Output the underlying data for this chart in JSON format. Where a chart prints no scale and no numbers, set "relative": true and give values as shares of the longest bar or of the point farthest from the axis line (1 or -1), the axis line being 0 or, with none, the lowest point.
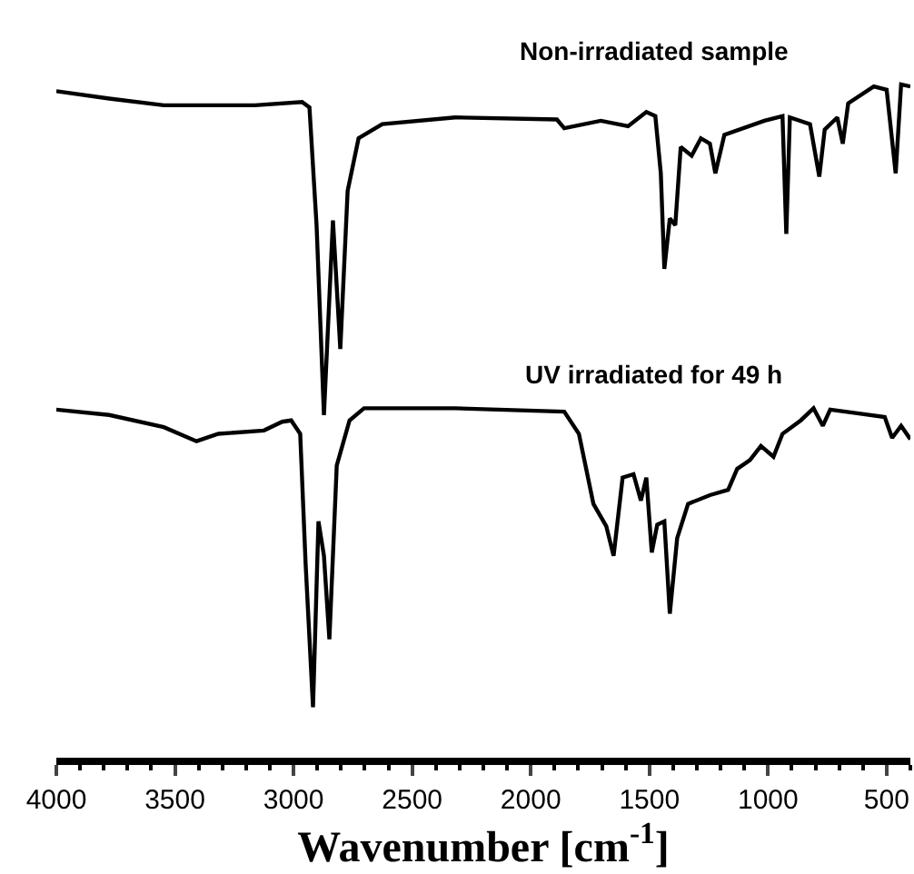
{
  "chart_data": {
    "type": "line",
    "relative": true,
    "xlabel": "Wavenumber [cm$^{-1}$]",
    "xlim": [
      4000,
      400
    ],
    "xticks": [
      4000,
      3500,
      3000,
      2500,
      2000,
      1500,
      1000,
      500
    ],
    "legend": false,
    "marker": "none",
    "line_style": "solid",
    "series": [
      {
        "name": "Non-irradiated sample",
        "color": "#000000",
        "x": [
          4000,
          3777,
          3547,
          3163,
          2964,
          2933,
          2903,
          2872,
          2834,
          2803,
          2772,
          2726,
          2626,
          2319,
          1890,
          1859,
          1705,
          1590,
          1513,
          1475,
          1452,
          1437,
          1414,
          1391,
          1368,
          1322,
          1283,
          1245,
          1222,
          1184,
          1015,
          939,
          923,
          908,
          823,
          784,
          761,
          708,
          685,
          662,
          554,
          500,
          462,
          439,
          400
        ],
        "values": [
          0.99,
          0.979,
          0.969,
          0.969,
          0.974,
          0.966,
          0.791,
          0.509,
          0.798,
          0.607,
          0.842,
          0.92,
          0.941,
          0.951,
          0.948,
          0.935,
          0.946,
          0.938,
          0.959,
          0.953,
          0.868,
          0.726,
          0.801,
          0.791,
          0.907,
          0.894,
          0.92,
          0.912,
          0.868,
          0.925,
          0.946,
          0.953,
          0.778,
          0.951,
          0.941,
          0.863,
          0.933,
          0.951,
          0.912,
          0.972,
          0.997,
          0.992,
          0.868,
          1.0,
          0.997
        ]
      },
      {
        "name": "UV irradiated for 49 h",
        "color": "#000000",
        "x": [
          4000,
          3777,
          3547,
          3409,
          3317,
          3125,
          3048,
          3010,
          2972,
          2949,
          2918,
          2895,
          2872,
          2849,
          2818,
          2764,
          2703,
          2319,
          1859,
          1797,
          1736,
          1682,
          1651,
          1613,
          1567,
          1536,
          1513,
          1490,
          1467,
          1437,
          1414,
          1383,
          1337,
          1245,
          1168,
          1130,
          1076,
          1030,
          977,
          939,
          862,
          808,
          769,
          738,
          631,
          508,
          477,
          439,
          400
        ],
        "values": [
          0.517,
          0.509,
          0.491,
          0.47,
          0.481,
          0.486,
          0.499,
          0.501,
          0.481,
          0.287,
          0.075,
          0.351,
          0.3,
          0.176,
          0.434,
          0.501,
          0.519,
          0.519,
          0.514,
          0.481,
          0.377,
          0.344,
          0.3,
          0.416,
          0.421,
          0.382,
          0.416,
          0.305,
          0.346,
          0.351,
          0.214,
          0.326,
          0.377,
          0.39,
          0.398,
          0.429,
          0.442,
          0.463,
          0.447,
          0.481,
          0.501,
          0.519,
          0.493,
          0.517,
          0.512,
          0.506,
          0.475,
          0.493,
          0.473
        ]
      }
    ]
  }
}
